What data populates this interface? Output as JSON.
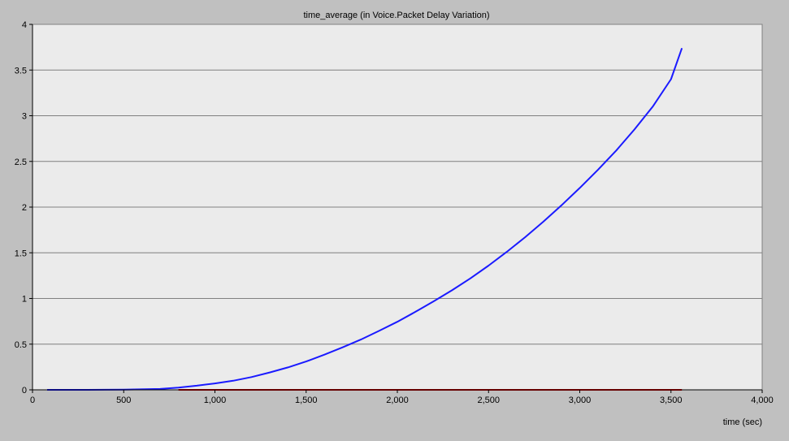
{
  "chart_data": {
    "type": "line",
    "title": "time_average (in Voice.Packet Delay Variation)",
    "xlabel": "time (sec)",
    "ylabel": "",
    "xlim": [
      0,
      4000
    ],
    "ylim": [
      0,
      4
    ],
    "xticks": [
      0,
      500,
      1000,
      1500,
      2000,
      2500,
      3000,
      3500,
      4000
    ],
    "xtick_labels": [
      "0",
      "500",
      "1,000",
      "1,500",
      "2,000",
      "2,500",
      "3,000",
      "3,500",
      "4,000"
    ],
    "yticks": [
      0,
      0.5,
      1,
      1.5,
      2,
      2.5,
      3,
      3.5,
      4
    ],
    "ytick_labels": [
      "0",
      "0.5",
      "1",
      "1.5",
      "2",
      "2.5",
      "3",
      "3.5",
      "4"
    ],
    "grid": "horizontal",
    "background_color": "#c0c0c0",
    "plot_color": "#ebebeb",
    "series": [
      {
        "color": "#1a1aff",
        "x": [
          80,
          300,
          500,
          700,
          800,
          900,
          1000,
          1100,
          1200,
          1300,
          1400,
          1500,
          1600,
          1700,
          1800,
          1900,
          2000,
          2100,
          2200,
          2300,
          2400,
          2500,
          2600,
          2700,
          2800,
          2900,
          3000,
          3100,
          3200,
          3300,
          3400,
          3500,
          3560
        ],
        "y": [
          0,
          0,
          0.002,
          0.01,
          0.025,
          0.045,
          0.07,
          0.1,
          0.14,
          0.19,
          0.245,
          0.31,
          0.385,
          0.465,
          0.55,
          0.645,
          0.745,
          0.855,
          0.97,
          1.09,
          1.22,
          1.36,
          1.51,
          1.67,
          1.84,
          2.02,
          2.21,
          2.41,
          2.62,
          2.85,
          3.1,
          3.4,
          3.74
        ]
      },
      {
        "color": "#cc0000",
        "x": [
          800,
          3560
        ],
        "y": [
          0,
          0
        ]
      }
    ]
  }
}
